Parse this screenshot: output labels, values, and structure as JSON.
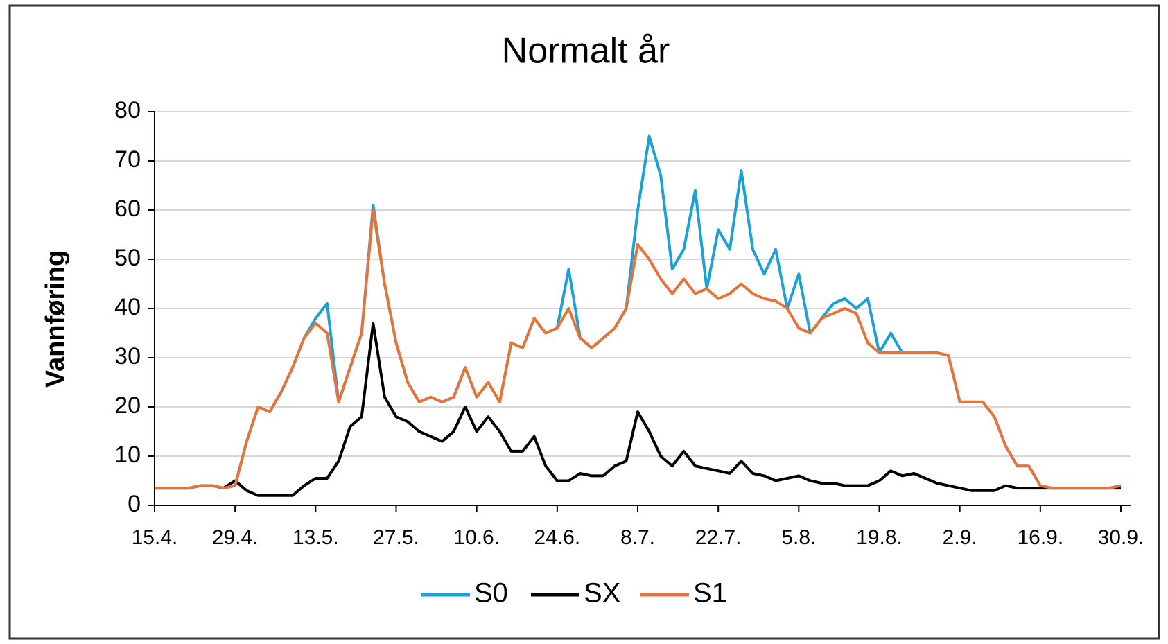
{
  "chart_data": {
    "type": "line",
    "title": "Normalt år",
    "y_label": "Vannføring",
    "categories": [
      "15.4.",
      null,
      null,
      null,
      null,
      null,
      null,
      "29.4.",
      null,
      null,
      null,
      null,
      null,
      null,
      "13.5.",
      null,
      null,
      null,
      null,
      null,
      null,
      "27.5.",
      null,
      null,
      null,
      null,
      null,
      null,
      "10.6.",
      null,
      null,
      null,
      null,
      null,
      null,
      "24.6.",
      null,
      null,
      null,
      null,
      null,
      null,
      "8.7.",
      null,
      null,
      null,
      null,
      null,
      null,
      "22.7.",
      null,
      null,
      null,
      null,
      null,
      null,
      "5.8.",
      null,
      null,
      null,
      null,
      null,
      null,
      "19.8.",
      null,
      null,
      null,
      null,
      null,
      null,
      "2.9.",
      null,
      null,
      null,
      null,
      null,
      null,
      "16.9.",
      null,
      null,
      null,
      null,
      null,
      null,
      "30.9."
    ],
    "series": [
      {
        "name": "S0",
        "color": "#1ba1d8",
        "values": [
          3.5,
          3.5,
          3.5,
          3.5,
          4,
          4,
          3.5,
          4,
          13,
          20,
          19,
          23,
          28,
          34,
          38,
          41,
          21,
          28,
          35,
          61,
          45,
          33,
          25,
          21,
          22,
          21,
          22,
          28,
          22,
          25,
          21,
          33,
          32,
          38,
          35,
          36,
          48,
          34,
          32,
          34,
          36,
          40,
          60,
          75,
          67,
          48,
          52,
          64,
          44,
          56,
          52,
          68,
          52,
          47,
          52,
          40,
          47,
          35,
          38,
          41,
          42,
          40,
          42,
          31,
          35,
          31,
          31,
          31,
          31,
          30.5,
          21,
          21,
          21,
          18,
          12,
          8,
          8,
          4,
          3.5,
          3.5,
          3.5,
          3.5,
          3.5,
          3.5,
          4
        ]
      },
      {
        "name": "SX",
        "color": "#000000",
        "values": [
          3.5,
          3.5,
          3.5,
          3.5,
          4,
          4,
          3.5,
          5,
          3,
          2,
          2,
          2,
          2,
          4,
          5.5,
          5.5,
          9,
          16,
          18,
          37,
          22,
          18,
          17,
          15,
          14,
          13,
          15,
          20,
          15,
          18,
          15,
          11,
          11,
          14,
          8,
          5,
          5,
          6.5,
          6,
          6,
          8,
          9,
          19,
          15,
          10,
          8,
          11,
          8,
          7.5,
          7,
          6.5,
          9,
          6.5,
          6,
          5,
          5.5,
          6,
          5,
          4.5,
          4.5,
          4,
          4,
          4,
          5,
          7,
          6,
          6.5,
          5.5,
          4.5,
          4,
          3.5,
          3,
          3,
          3,
          4,
          3.5,
          3.5,
          3.5,
          3.5,
          3.5,
          3.5,
          3.5,
          3.5,
          3.5,
          3.5
        ]
      },
      {
        "name": "S1",
        "color": "#e8733a",
        "values": [
          3.5,
          3.5,
          3.5,
          3.5,
          4,
          4,
          3.5,
          4,
          13,
          20,
          19,
          23,
          28,
          34,
          37,
          35,
          21,
          28,
          35,
          60,
          45,
          33,
          25,
          21,
          22,
          21,
          22,
          28,
          22,
          25,
          21,
          33,
          32,
          38,
          35,
          36,
          40,
          34,
          32,
          34,
          36,
          40,
          53,
          50,
          46,
          43,
          46,
          43,
          44,
          42,
          43,
          45,
          43,
          42,
          41.5,
          40,
          36,
          35,
          38,
          39,
          40,
          39,
          33,
          31,
          31,
          31,
          31,
          31,
          31,
          30.5,
          21,
          21,
          21,
          18,
          12,
          8,
          8,
          4,
          3.5,
          3.5,
          3.5,
          3.5,
          3.5,
          3.5,
          4
        ]
      }
    ],
    "ylim": [
      0,
      80
    ],
    "yticks": [
      0,
      10,
      20,
      30,
      40,
      50,
      60,
      70,
      80
    ],
    "grid": true,
    "legend": "bottom"
  }
}
